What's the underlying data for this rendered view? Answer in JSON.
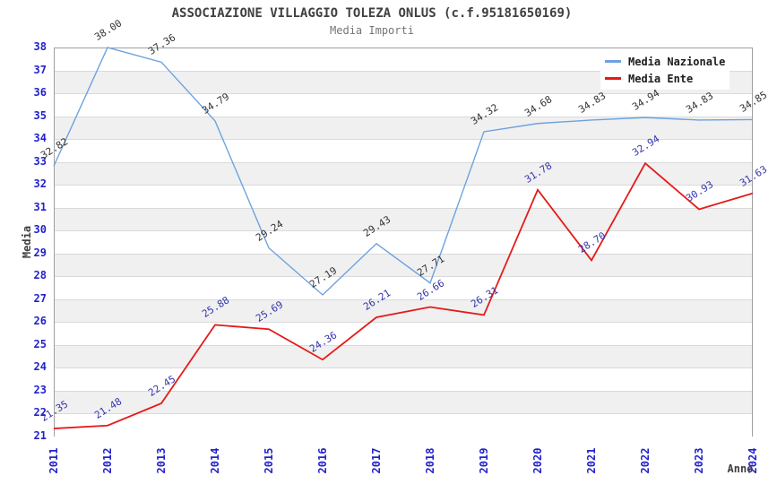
{
  "chart_data": {
    "type": "line",
    "title": "ASSOCIAZIONE VILLAGGIO TOLEZA ONLUS (c.f.95181650169)",
    "subtitle": "Media Importi",
    "xlabel": "Anno",
    "ylabel": "Media",
    "categories": [
      "2011",
      "2012",
      "2013",
      "2014",
      "2015",
      "2016",
      "2017",
      "2018",
      "2019",
      "2020",
      "2021",
      "2022",
      "2023",
      "2024"
    ],
    "series": [
      {
        "name": "Media Nazionale",
        "color": "#6ca2df",
        "label_color": "#333333",
        "values": [
          32.82,
          38.0,
          37.36,
          34.79,
          29.24,
          27.19,
          29.43,
          27.71,
          34.32,
          34.68,
          34.83,
          34.94,
          34.83,
          34.85
        ]
      },
      {
        "name": "Media Ente",
        "color": "#e61a1a",
        "label_color": "#3434b0",
        "values": [
          21.35,
          21.48,
          22.45,
          25.88,
          25.69,
          24.36,
          26.21,
          26.66,
          26.31,
          31.78,
          28.7,
          32.94,
          30.93,
          31.63
        ]
      }
    ],
    "ylim": [
      21,
      38
    ],
    "ytick_step": 1,
    "value_decimals": 2,
    "grid": true,
    "band_colors": [
      "#ffffff",
      "#f0f0f0"
    ],
    "legend_position": "top-right",
    "colors": {
      "axis_tick": "#2222cc",
      "gridline": "#dadada",
      "frame": "#9f9f9f",
      "title": "#3f3f3f",
      "subtitle": "#757575"
    }
  }
}
